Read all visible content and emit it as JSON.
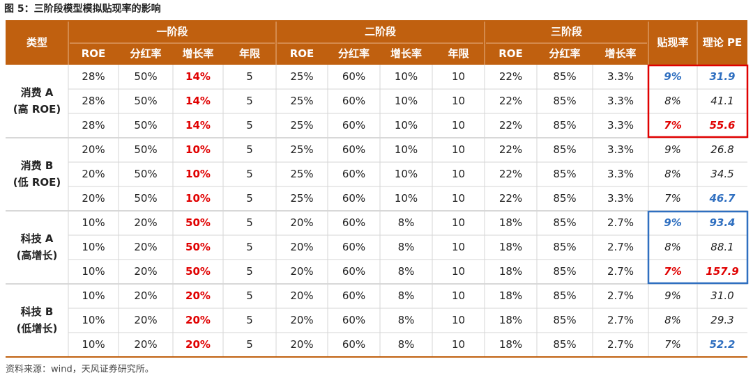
{
  "header": {
    "title": "图 5：三阶段模型模拟贴现率的影响"
  },
  "table": {
    "type_label": "类型",
    "stages": [
      "一阶段",
      "二阶段",
      "三阶段"
    ],
    "columns": [
      "ROE",
      "分红率",
      "增长率",
      "年限",
      "ROE",
      "分红率",
      "增长率",
      "年限",
      "ROE",
      "分红率",
      "增长率"
    ],
    "rate_label": "贴现率",
    "pe_label": "理论 PE",
    "groups": [
      {
        "type": [
          "消费 A",
          "(高 ROE)"
        ],
        "rows": [
          [
            "28%",
            "50%",
            "14%",
            "5",
            "25%",
            "60%",
            "10%",
            "10",
            "22%",
            "85%",
            "3.3%",
            "9%",
            "31.9"
          ],
          [
            "28%",
            "50%",
            "14%",
            "5",
            "25%",
            "60%",
            "10%",
            "10",
            "22%",
            "85%",
            "3.3%",
            "8%",
            "41.1"
          ],
          [
            "28%",
            "50%",
            "14%",
            "5",
            "25%",
            "60%",
            "10%",
            "10",
            "22%",
            "85%",
            "3.3%",
            "7%",
            "55.6"
          ]
        ]
      },
      {
        "type": [
          "消费 B",
          "(低 ROE)"
        ],
        "rows": [
          [
            "20%",
            "50%",
            "10%",
            "5",
            "25%",
            "60%",
            "10%",
            "10",
            "22%",
            "85%",
            "3.3%",
            "9%",
            "26.8"
          ],
          [
            "20%",
            "50%",
            "10%",
            "5",
            "25%",
            "60%",
            "10%",
            "10",
            "22%",
            "85%",
            "3.3%",
            "8%",
            "34.5"
          ],
          [
            "20%",
            "50%",
            "10%",
            "5",
            "25%",
            "60%",
            "10%",
            "10",
            "22%",
            "85%",
            "3.3%",
            "7%",
            "46.7"
          ]
        ]
      },
      {
        "type": [
          "科技 A",
          "(高增长)"
        ],
        "rows": [
          [
            "10%",
            "20%",
            "50%",
            "5",
            "20%",
            "60%",
            "8%",
            "10",
            "18%",
            "85%",
            "2.7%",
            "9%",
            "93.4"
          ],
          [
            "10%",
            "20%",
            "50%",
            "5",
            "20%",
            "60%",
            "8%",
            "10",
            "18%",
            "85%",
            "2.7%",
            "8%",
            "88.1"
          ],
          [
            "10%",
            "20%",
            "50%",
            "5",
            "20%",
            "60%",
            "8%",
            "10",
            "18%",
            "85%",
            "2.7%",
            "7%",
            "157.9"
          ]
        ]
      },
      {
        "type": [
          "科技 B",
          "(低增长)"
        ],
        "rows": [
          [
            "10%",
            "20%",
            "20%",
            "5",
            "20%",
            "60%",
            "8%",
            "10",
            "18%",
            "85%",
            "2.7%",
            "9%",
            "31.0"
          ],
          [
            "10%",
            "20%",
            "20%",
            "5",
            "20%",
            "60%",
            "8%",
            "10",
            "18%",
            "85%",
            "2.7%",
            "8%",
            "29.3"
          ],
          [
            "10%",
            "20%",
            "20%",
            "5",
            "20%",
            "60%",
            "8%",
            "10",
            "18%",
            "85%",
            "2.7%",
            "7%",
            "52.2"
          ]
        ]
      }
    ]
  },
  "footer": {
    "source": "资料来源：wind，天风证券研究所。"
  }
}
